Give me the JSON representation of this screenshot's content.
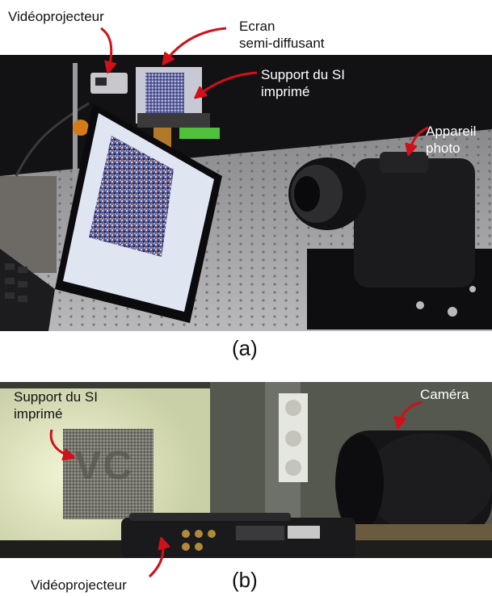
{
  "panel_a": {
    "labels": {
      "videoprojecteur": "Vidéoprojecteur",
      "ecran": "Ecran\nsemi-diffusant",
      "support": "Support du SI\nimprimé",
      "appareil": "Appareil\nphoto"
    },
    "caption": "(a)"
  },
  "panel_b": {
    "labels": {
      "support": "Support du SI\nimprimé",
      "camera": "Caméra",
      "videoprojecteur": "Vidéoprojecteur"
    },
    "projected_text": "VC",
    "caption": "(b)"
  },
  "colors": {
    "arrow": "#d0101a"
  }
}
